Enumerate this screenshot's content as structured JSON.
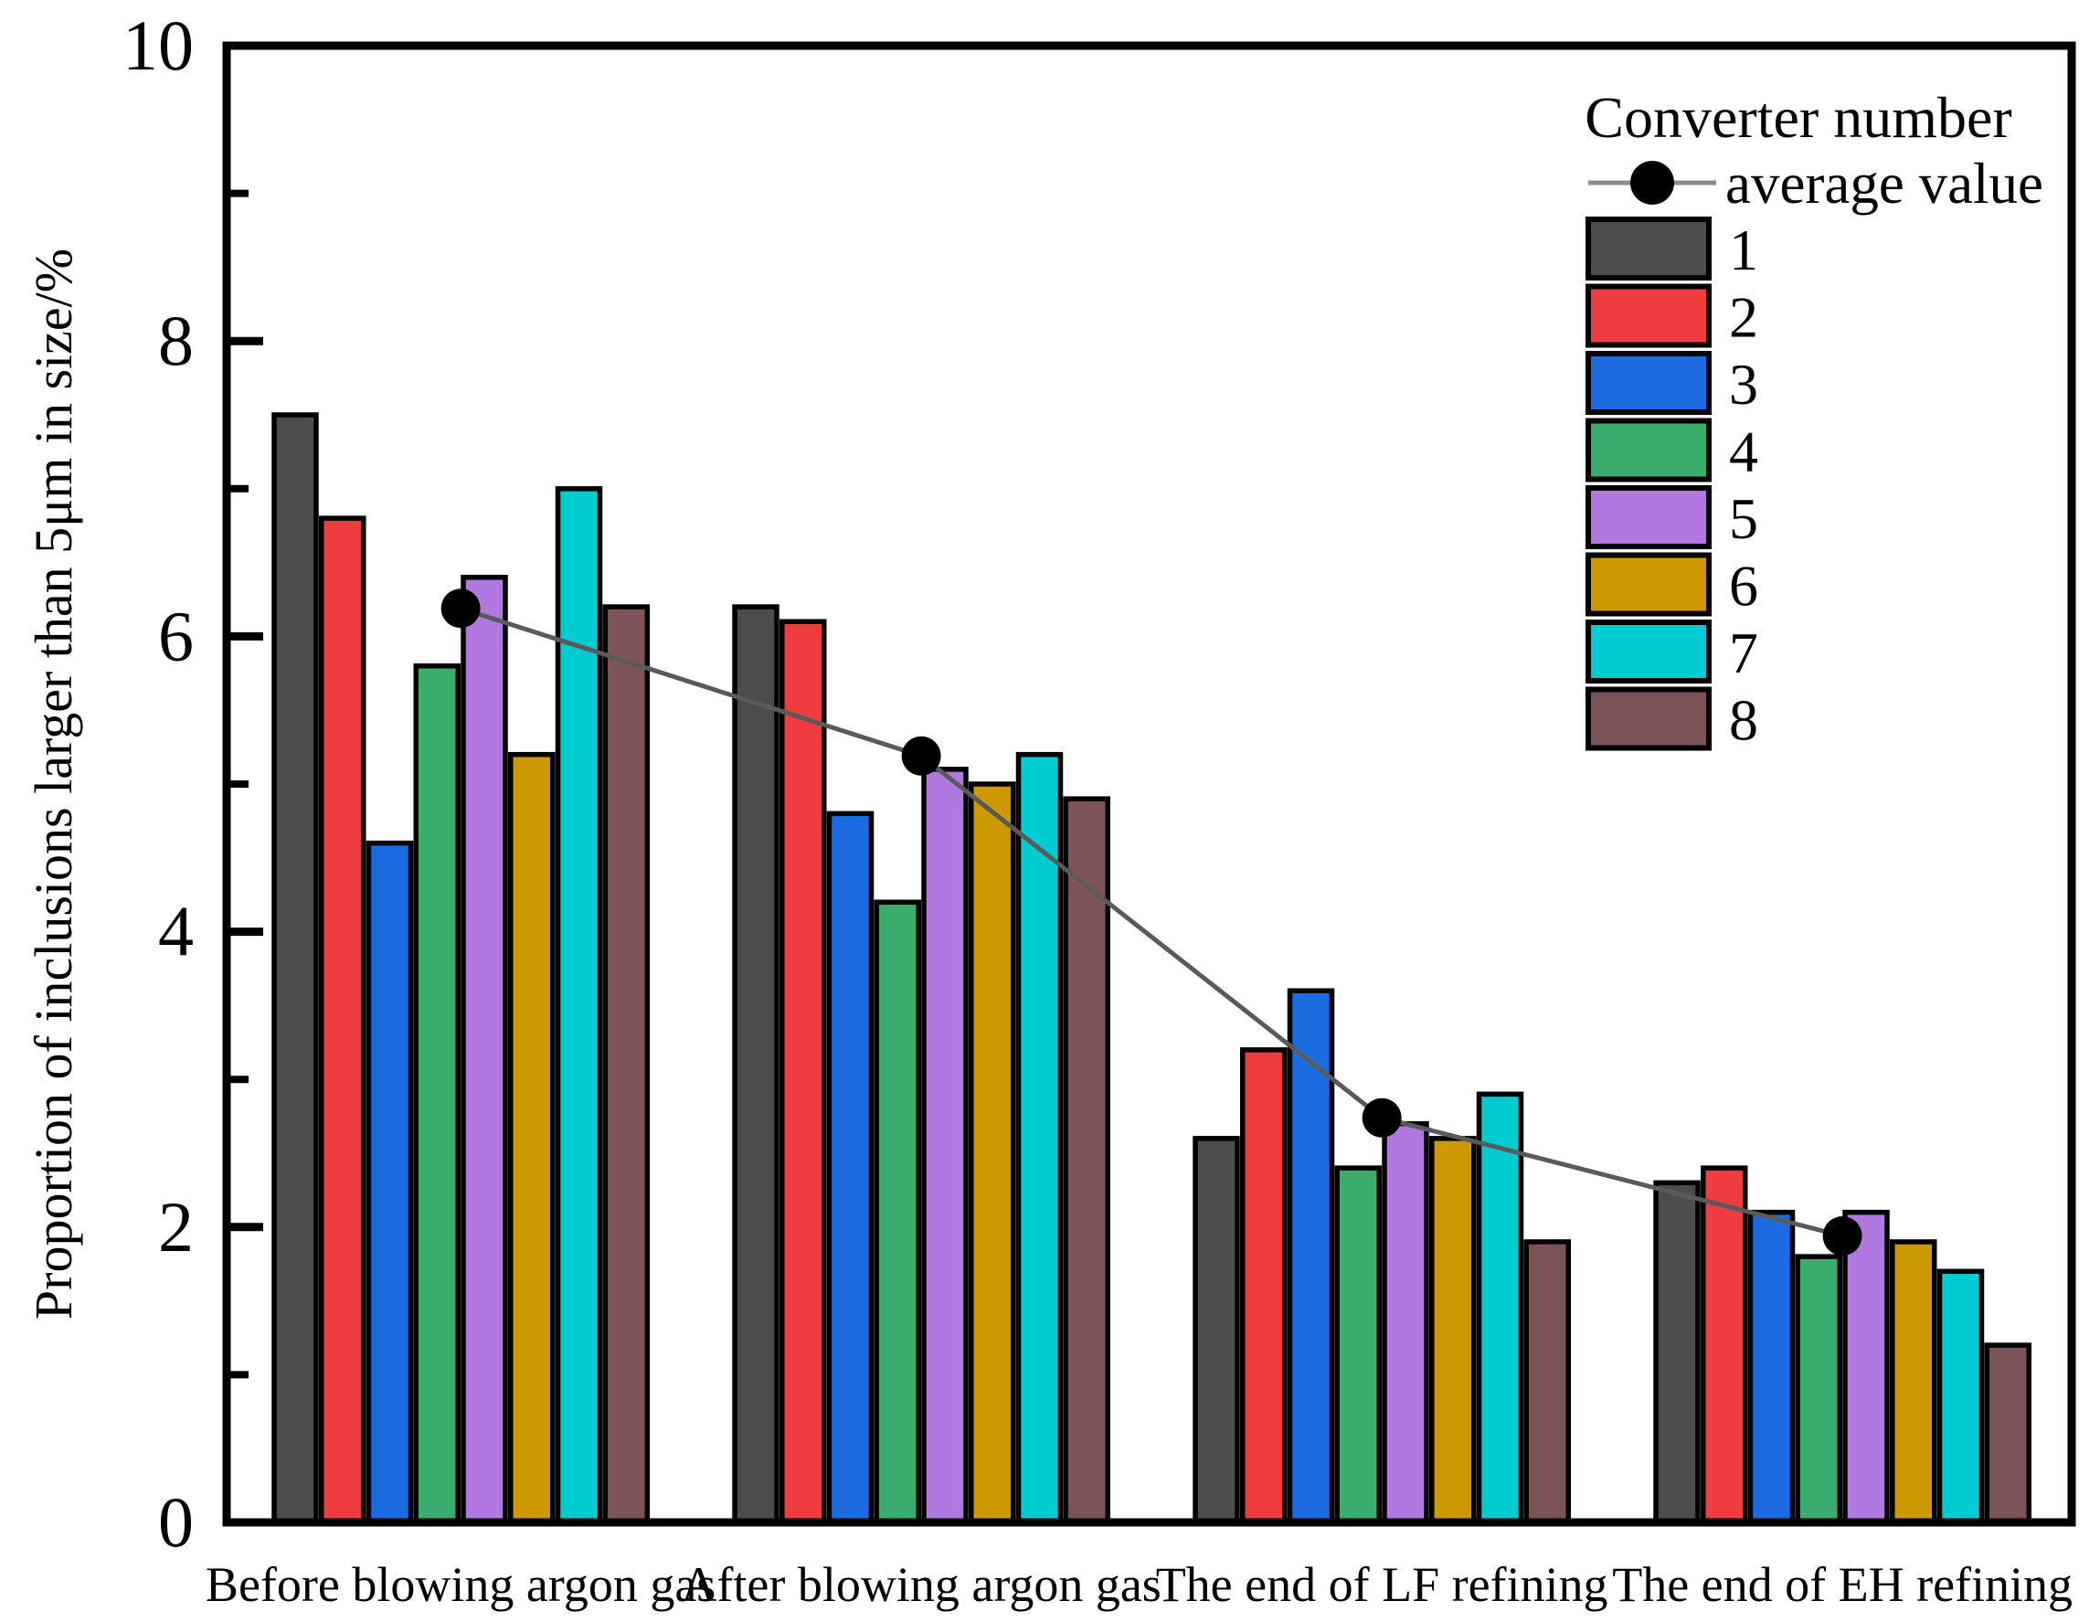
{
  "chart_data": {
    "type": "bar",
    "title": "",
    "xlabel": "",
    "ylabel": "Proportion of inclusions larger than 5μm in size/%",
    "ylim": [
      0,
      10
    ],
    "ytick_major": [
      0,
      2,
      4,
      6,
      8,
      10
    ],
    "ytick_minor": [
      1,
      3,
      5,
      7,
      9
    ],
    "grid": false,
    "legend_position": "upper right",
    "legend_title": "Converter number",
    "categories": [
      "Before blowing argon gas",
      "After blowing argon gas",
      "The end of LF refining",
      "The end of EH refining"
    ],
    "series": [
      {
        "name": "1",
        "color": "#4c4c4c",
        "values": [
          7.5,
          6.2,
          2.6,
          2.3
        ]
      },
      {
        "name": "2",
        "color": "#ee3c40",
        "values": [
          6.8,
          6.1,
          3.2,
          2.4
        ]
      },
      {
        "name": "3",
        "color": "#1b6ce0",
        "values": [
          4.6,
          4.8,
          3.6,
          2.1
        ]
      },
      {
        "name": "4",
        "color": "#3aac6c",
        "values": [
          5.8,
          4.2,
          2.4,
          1.8
        ]
      },
      {
        "name": "5",
        "color": "#b178e0",
        "values": [
          6.4,
          5.1,
          2.7,
          2.1
        ]
      },
      {
        "name": "6",
        "color": "#cc9900",
        "values": [
          5.2,
          5.0,
          2.6,
          1.9
        ]
      },
      {
        "name": "7",
        "color": "#00cbd0",
        "values": [
          7.0,
          5.2,
          2.9,
          1.7
        ]
      },
      {
        "name": "8",
        "color": "#7d5456",
        "values": [
          6.2,
          4.9,
          1.9,
          1.2
        ]
      }
    ],
    "average_line": {
      "label": "average value",
      "values": [
        6.19,
        5.19,
        2.74,
        1.94
      ],
      "line_color": "#5a5a5a",
      "legend_line_color": "#8c8c8c",
      "marker_color": "#000000"
    },
    "colors": {
      "axis": "#000000",
      "background": "#ffffff"
    }
  }
}
